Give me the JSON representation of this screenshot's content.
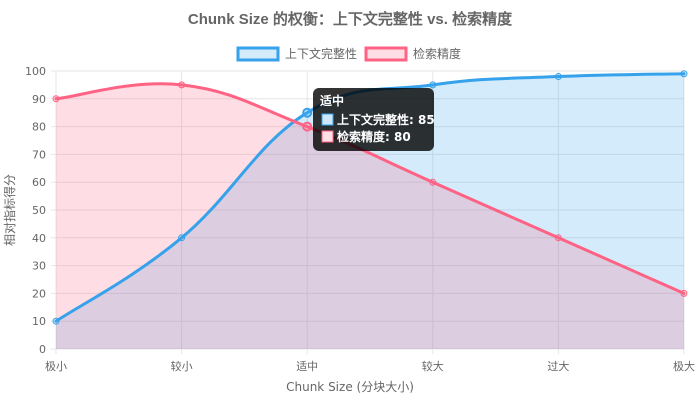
{
  "chart_data": {
    "type": "line",
    "title": "Chunk Size 的权衡：上下文完整性 vs. 检索精度",
    "categories": [
      "极小",
      "较小",
      "适中",
      "较大",
      "过大",
      "极大"
    ],
    "series": [
      {
        "name": "上下文完整性",
        "values": [
          10,
          40,
          85,
          95,
          98,
          99
        ],
        "color": "#36A2EB",
        "fill": "rgba(54,162,235,0.22)"
      },
      {
        "name": "检索精度",
        "values": [
          90,
          95,
          80,
          60,
          40,
          20
        ],
        "color": "#FF6384",
        "fill": "rgba(255,99,132,0.22)"
      }
    ],
    "xlabel": "Chunk Size (分块大小)",
    "ylabel": "相对指标得分",
    "ylim": [
      0,
      100
    ],
    "yticks": [
      0,
      10,
      20,
      30,
      40,
      50,
      60,
      70,
      80,
      90,
      100
    ],
    "grid": true,
    "legend_position": "top",
    "tooltip": {
      "category_index": 2,
      "title": "适中",
      "lines": [
        "上下文完整性: 85",
        "检索精度: 80"
      ]
    }
  }
}
